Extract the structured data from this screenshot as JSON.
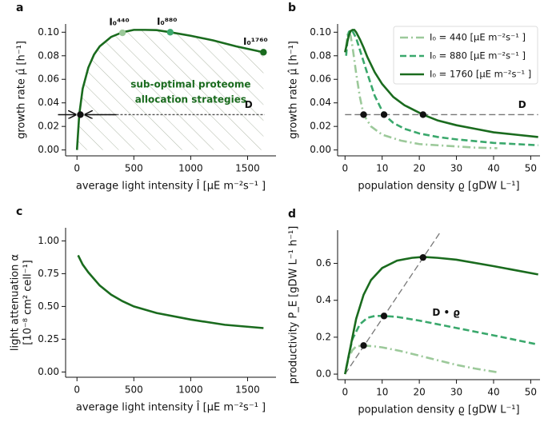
{
  "chart_data": [
    {
      "panel": "a",
      "type": "line",
      "xlabel": "average light intensity Î [µE m⁻²s⁻¹ ]",
      "ylabel": "growth rate µ̂ [h⁻¹]",
      "xlim": [
        -100,
        1750
      ],
      "ylim": [
        -0.005,
        0.107
      ],
      "xticks": [
        0,
        500,
        1000,
        1500
      ],
      "yticks": [
        {
          "value": 0,
          "label": "0.00"
        },
        {
          "value": 0.02,
          "label": "0.02"
        },
        {
          "value": 0.04,
          "label": "0.04"
        },
        {
          "value": 0.06,
          "label": "0.06"
        },
        {
          "value": 0.08,
          "label": "0.08"
        },
        {
          "value": 0.1,
          "label": "0.10"
        }
      ],
      "hatched": true,
      "series": [
        {
          "color": "#1a6b1e",
          "dash": "solid",
          "x": [
            0,
            20,
            50,
            100,
            150,
            200,
            300,
            400,
            500,
            600,
            700,
            820,
            1000,
            1200,
            1400,
            1640
          ],
          "values": [
            0,
            0.03,
            0.052,
            0.07,
            0.081,
            0.088,
            0.096,
            0.1,
            0.102,
            0.102,
            0.1018,
            0.1,
            0.097,
            0.093,
            0.088,
            0.083
          ]
        }
      ],
      "reference": {
        "x": [
          30,
          1650
        ],
        "values": [
          0.03,
          0.03
        ],
        "label": "D",
        "color": "#555",
        "dash": "dotted"
      },
      "points": {
        "x": [
          400,
          820,
          1640,
          30
        ],
        "y": [
          0.0995,
          0.1,
          0.083,
          0.03
        ],
        "colors": [
          "#9cc99a",
          "#3aa86c",
          "#1a6b1e",
          "#111"
        ],
        "labels": [
          "I₀⁴⁴⁰",
          "I₀⁸⁸⁰",
          "I₀¹⁷⁶⁰",
          null
        ]
      },
      "annotation": [
        "sub-optimal proteome",
        "allocation strategies"
      ],
      "annotation_color": "#1a6b1e"
    },
    {
      "panel": "b",
      "type": "line",
      "xlabel": "population density ϱ [gDW L⁻¹]",
      "ylabel": "growth rate µ̂ [h⁻¹]",
      "xlim": [
        -2,
        52.5
      ],
      "ylim": [
        -0.005,
        0.107
      ],
      "xticks": [
        0,
        10,
        20,
        30,
        40,
        50
      ],
      "yticks": [
        {
          "value": 0,
          "label": "0.00"
        },
        {
          "value": 0.02,
          "label": "0.02"
        },
        {
          "value": 0.04,
          "label": "0.04"
        },
        {
          "value": 0.06,
          "label": "0.06"
        },
        {
          "value": 0.08,
          "label": "0.08"
        },
        {
          "value": 0.1,
          "label": "0.10"
        }
      ],
      "legend": "upper right",
      "series": [
        {
          "name": "I₀ = 440 [µE m⁻²s⁻¹ ]",
          "color": "#9cc99a",
          "dash": "dashdot",
          "x": [
            0.3,
            0.7,
            1,
            1.5,
            2,
            3,
            4,
            5,
            7,
            10,
            15,
            20,
            25,
            30,
            35,
            41
          ],
          "values": [
            0.088,
            0.098,
            0.1,
            0.097,
            0.088,
            0.065,
            0.045,
            0.03,
            0.02,
            0.013,
            0.008,
            0.005,
            0.004,
            0.003,
            0.002,
            0.0015
          ]
        },
        {
          "name": "I₀ = 880 [µE m⁻²s⁻¹ ]",
          "color": "#3aa86c",
          "dash": "dashed",
          "x": [
            0.3,
            0.7,
            1,
            1.5,
            2,
            3,
            4,
            5,
            6,
            8,
            10.5,
            13,
            16,
            20,
            25,
            30,
            40,
            52
          ],
          "values": [
            0.08,
            0.095,
            0.1,
            0.102,
            0.101,
            0.095,
            0.085,
            0.075,
            0.065,
            0.046,
            0.03,
            0.023,
            0.018,
            0.014,
            0.011,
            0.009,
            0.006,
            0.004
          ]
        },
        {
          "name": "I₀ = 1760 [µE m⁻²s⁻¹ ]",
          "color": "#1a6b1e",
          "dash": "solid",
          "x": [
            0,
            0.5,
            1,
            1.5,
            2,
            2.5,
            3,
            4,
            5,
            6,
            8,
            10,
            13,
            16,
            21,
            25,
            30,
            35,
            40,
            46,
            52
          ],
          "values": [
            0.083,
            0.09,
            0.097,
            0.101,
            0.102,
            0.102,
            0.1,
            0.094,
            0.087,
            0.079,
            0.066,
            0.056,
            0.045,
            0.038,
            0.03,
            0.025,
            0.021,
            0.018,
            0.015,
            0.013,
            0.011
          ]
        }
      ],
      "reference": {
        "x": [
          0,
          52
        ],
        "values": [
          0.03,
          0.03
        ],
        "label": "D",
        "color": "#777",
        "dash": "dashed"
      },
      "points": {
        "x": [
          5,
          10.5,
          21
        ],
        "y": [
          0.03,
          0.03,
          0.03
        ],
        "color": "#111"
      }
    },
    {
      "panel": "c",
      "type": "line",
      "xlabel": "average light intensity Î [µE m⁻²s⁻¹ ]",
      "ylabel": [
        "light attenuation α",
        "[10⁻⁸ cm² cell⁻¹]"
      ],
      "xlim": [
        -100,
        1750
      ],
      "ylim": [
        -0.04,
        1.1
      ],
      "xticks": [
        0,
        500,
        1000,
        1500
      ],
      "yticks": [
        {
          "value": 0,
          "label": "0.00"
        },
        {
          "value": 0.25,
          "label": "0.25"
        },
        {
          "value": 0.5,
          "label": "0.50"
        },
        {
          "value": 0.75,
          "label": "0.75"
        },
        {
          "value": 1,
          "label": "1.00"
        }
      ],
      "series": [
        {
          "color": "#1a6b1e",
          "dash": "solid",
          "x": [
            10,
            50,
            100,
            200,
            300,
            400,
            500,
            700,
            1000,
            1300,
            1640
          ],
          "values": [
            0.89,
            0.82,
            0.76,
            0.66,
            0.59,
            0.54,
            0.5,
            0.45,
            0.4,
            0.36,
            0.335
          ]
        }
      ]
    },
    {
      "panel": "d",
      "type": "line",
      "xlabel": "population density ϱ [gDW L⁻¹]",
      "ylabel": "productivity P_E [gDW L⁻¹ h⁻¹]",
      "xlim": [
        -2,
        52.5
      ],
      "ylim": [
        -0.03,
        0.78
      ],
      "xticks": [
        0,
        10,
        20,
        30,
        40,
        50
      ],
      "yticks": [
        {
          "value": 0,
          "label": "0.0"
        },
        {
          "value": 0.2,
          "label": "0.2"
        },
        {
          "value": 0.4,
          "label": "0.4"
        },
        {
          "value": 0.6,
          "label": "0.6"
        }
      ],
      "series": [
        {
          "color": "#9cc99a",
          "dash": "dashdot",
          "x": [
            0.3,
            1,
            2,
            3,
            5,
            8,
            10,
            15,
            20,
            25,
            30,
            35,
            41
          ],
          "values": [
            0.03,
            0.09,
            0.13,
            0.15,
            0.155,
            0.15,
            0.145,
            0.125,
            0.1,
            0.075,
            0.05,
            0.03,
            0.01
          ]
        },
        {
          "color": "#3aa86c",
          "dash": "dashed",
          "x": [
            0.3,
            1,
            2,
            4,
            6,
            8,
            10.5,
            14,
            20,
            30,
            40,
            52
          ],
          "values": [
            0.03,
            0.1,
            0.19,
            0.27,
            0.305,
            0.315,
            0.315,
            0.31,
            0.29,
            0.25,
            0.21,
            0.16
          ]
        },
        {
          "color": "#1a6b1e",
          "dash": "solid",
          "x": [
            0,
            1,
            2,
            3,
            5,
            7,
            10,
            14,
            18,
            21,
            25,
            30,
            40,
            52
          ],
          "values": [
            0,
            0.1,
            0.2,
            0.3,
            0.43,
            0.51,
            0.575,
            0.615,
            0.63,
            0.635,
            0.63,
            0.62,
            0.585,
            0.54
          ]
        }
      ],
      "reference": {
        "x": [
          0,
          25.5
        ],
        "values": [
          0,
          0.765
        ],
        "label": "D • ϱ",
        "color": "#777",
        "dash": "dashed"
      },
      "points": {
        "x": [
          5,
          10.5,
          21
        ],
        "y": [
          0.155,
          0.315,
          0.632
        ],
        "color": "#111"
      }
    }
  ]
}
